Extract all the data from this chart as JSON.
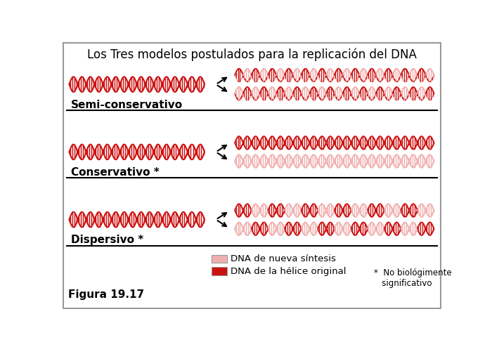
{
  "title": "Los Tres modelos postulados para la replicación del DNA",
  "title_fontsize": 12,
  "label_semi": "Semi-conservativo",
  "label_cons": "Conservativo *",
  "label_disp": "Dispersivo *",
  "legend_new": "DNA de nueva síntesis",
  "legend_orig": "DNA de la hélice original",
  "footnote": "*  No biológimente\n   significativo",
  "figure_label": "Figura 19.17",
  "color_orig": "#cc1111",
  "color_new": "#f0b0b0",
  "bg_color": "#ffffff",
  "border_color": "#999999"
}
